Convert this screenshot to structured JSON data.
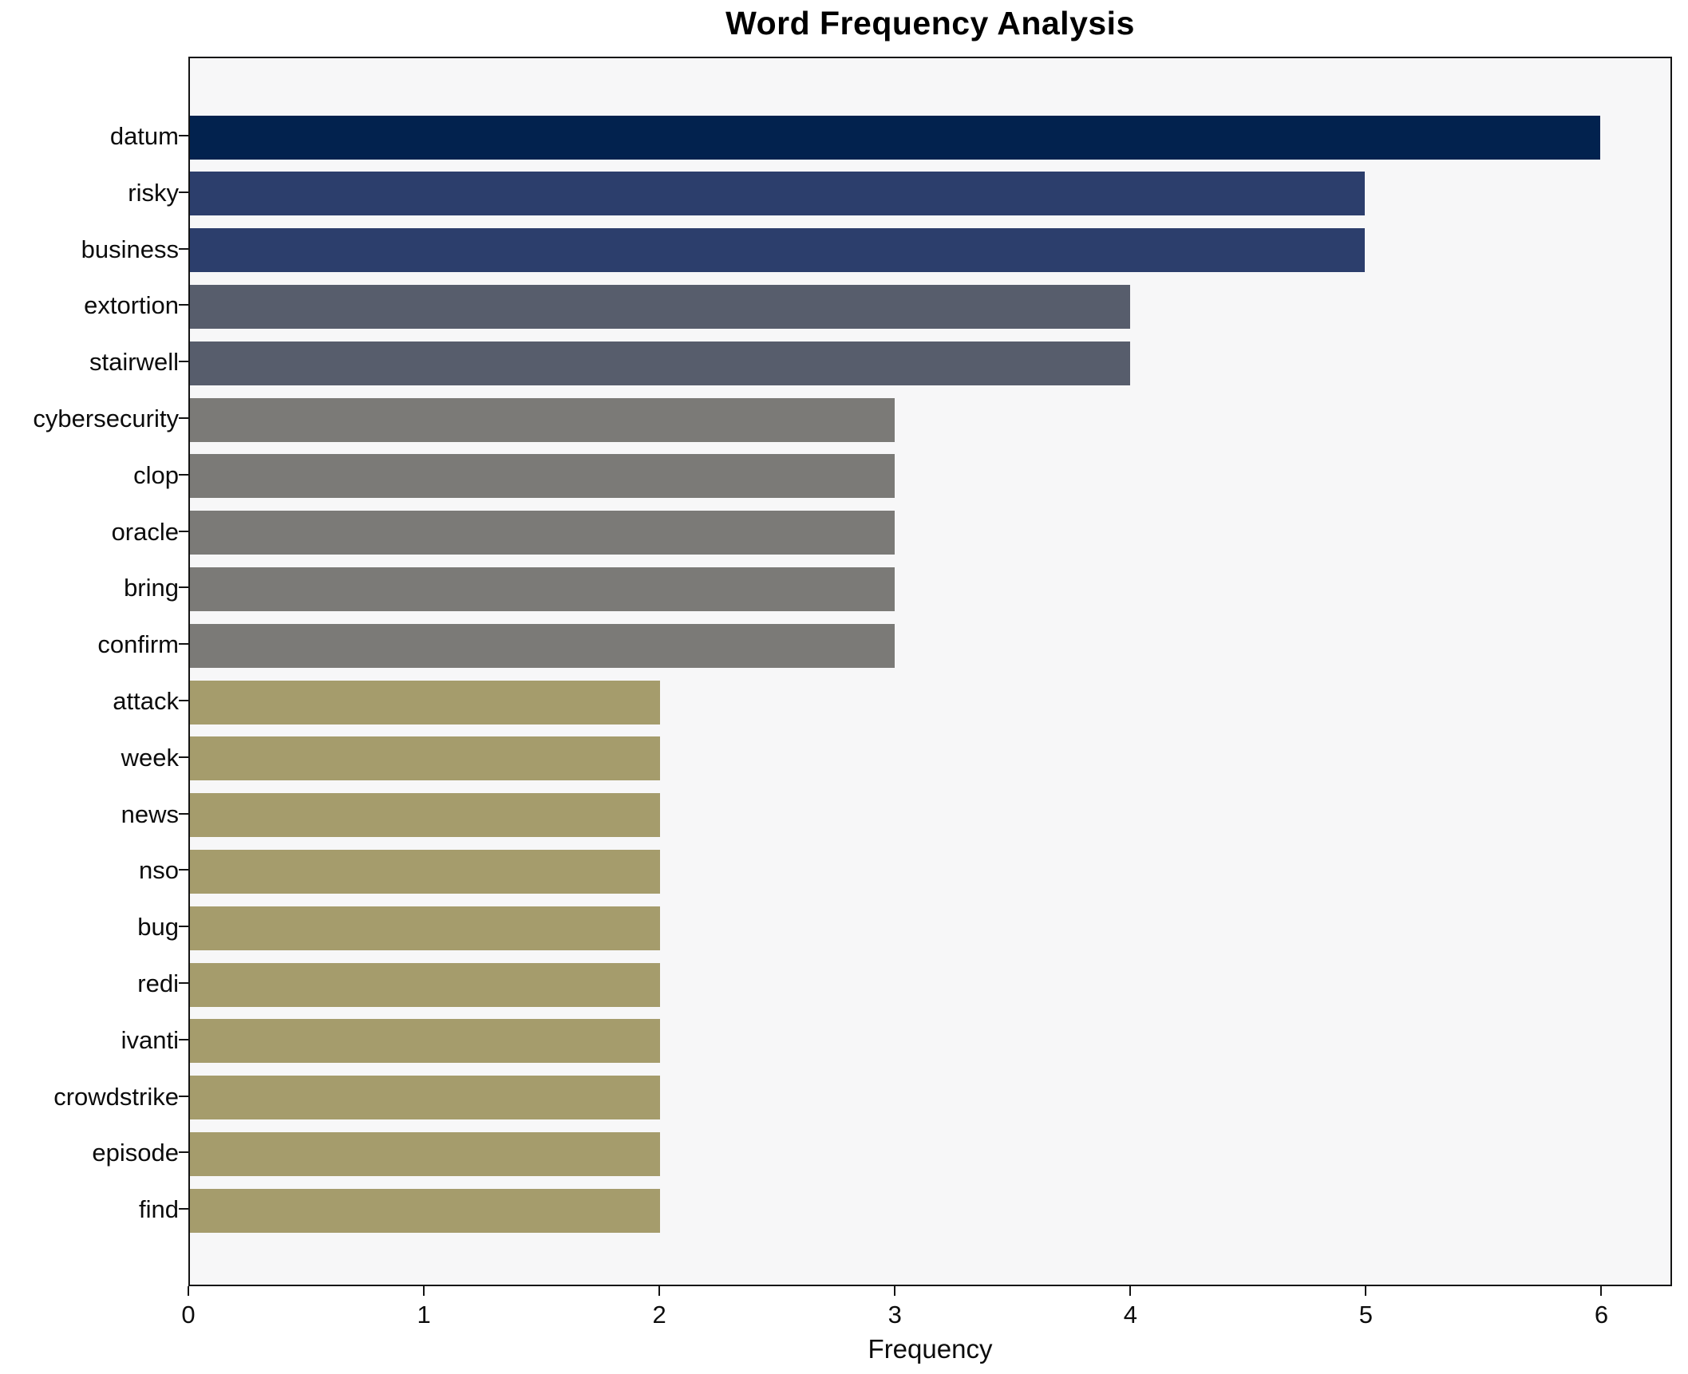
{
  "figure": {
    "background": "#ffffff",
    "plot_background": "#f7f7f8",
    "spine_color": "#141414"
  },
  "chart_data": {
    "type": "bar",
    "orientation": "horizontal",
    "title": "Word Frequency Analysis",
    "xlabel": "Frequency",
    "ylabel": "",
    "legend": "none",
    "grid": false,
    "xlim": [
      0,
      6.3
    ],
    "x_ticks": [
      0,
      1,
      2,
      3,
      4,
      5,
      6
    ],
    "categories": [
      "datum",
      "risky",
      "business",
      "extortion",
      "stairwell",
      "cybersecurity",
      "clop",
      "oracle",
      "bring",
      "confirm",
      "attack",
      "week",
      "news",
      "nso",
      "bug",
      "redi",
      "ivanti",
      "crowdstrike",
      "episode",
      "find"
    ],
    "values": [
      6,
      5,
      5,
      4,
      4,
      3,
      3,
      3,
      3,
      3,
      2,
      2,
      2,
      2,
      2,
      2,
      2,
      2,
      2,
      2
    ],
    "bar_colors_by_value": {
      "6": "#02224e",
      "5": "#2c3e6c",
      "4": "#575d6c",
      "3": "#7b7a77",
      "2": "#a59c6c"
    }
  }
}
